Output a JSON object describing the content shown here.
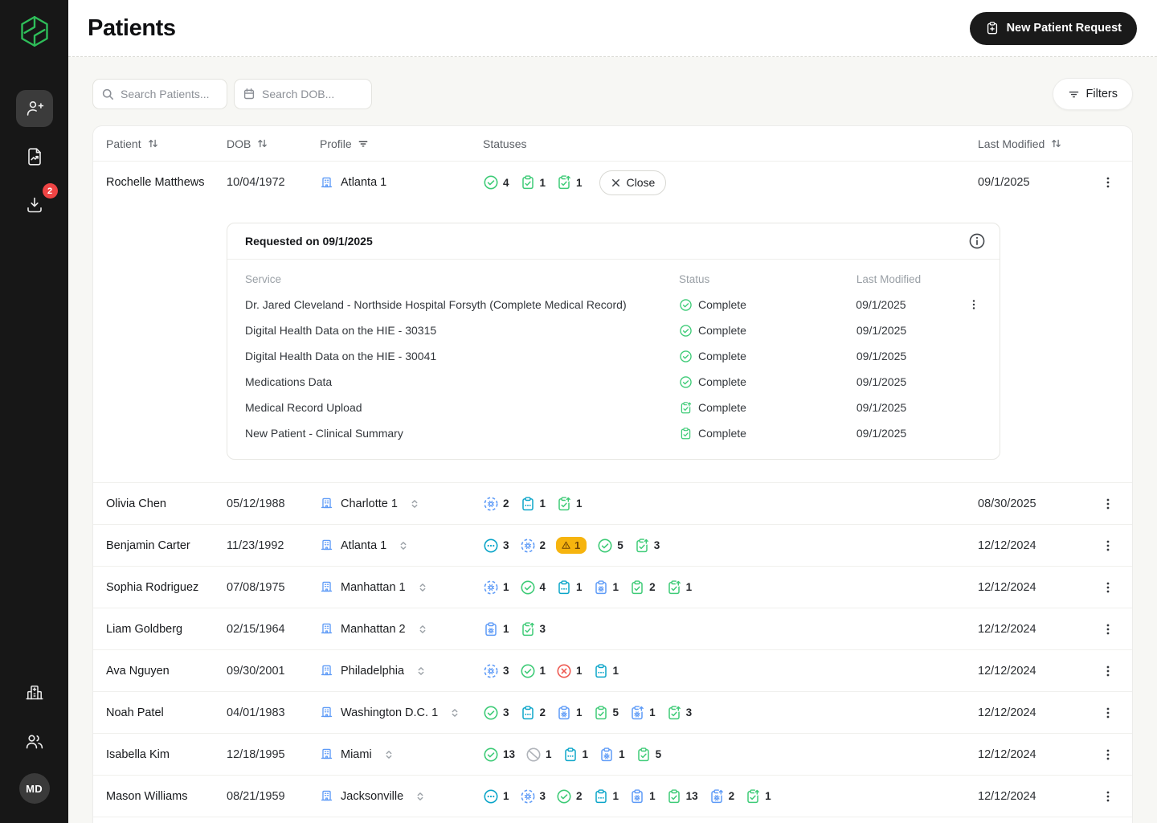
{
  "sidebar": {
    "logo": "brand-logo",
    "nav": [
      {
        "icon": "person-add",
        "active": true
      },
      {
        "icon": "file-chart",
        "active": false
      },
      {
        "icon": "download-tray",
        "active": false,
        "badge": "2"
      }
    ],
    "bottom": [
      {
        "icon": "hospital"
      },
      {
        "icon": "users"
      }
    ],
    "avatar_initials": "MD"
  },
  "header": {
    "title": "Patients",
    "new_patient_button": "New Patient Request"
  },
  "toolbar": {
    "search_patients_placeholder": "Search Patients...",
    "search_dob_placeholder": "Search DOB...",
    "filters_label": "Filters"
  },
  "table": {
    "columns": {
      "patient": "Patient",
      "dob": "DOB",
      "profile": "Profile",
      "statuses": "Statuses",
      "last_modified": "Last Modified"
    },
    "rows": [
      {
        "name": "Rochelle Matthews",
        "dob": "10/04/1972",
        "profile": "Atlanta 1",
        "selector": false,
        "expanded": true,
        "close_button": "Close",
        "last_modified": "09/1/2025",
        "statuses": [
          {
            "icon": "circle-check",
            "count": "4"
          },
          {
            "icon": "clipboard-check",
            "count": "1"
          },
          {
            "icon": "clipboard-up",
            "count": "1"
          }
        ]
      },
      {
        "name": "Olivia Chen",
        "dob": "05/12/1988",
        "profile": "Charlotte 1",
        "selector": true,
        "last_modified": "08/30/2025",
        "statuses": [
          {
            "icon": "gear-circle",
            "count": "2"
          },
          {
            "icon": "clipboard-dots",
            "count": "1"
          },
          {
            "icon": "clipboard-up",
            "count": "1"
          }
        ]
      },
      {
        "name": "Benjamin Carter",
        "dob": "11/23/1992",
        "profile": "Atlanta 1",
        "selector": true,
        "last_modified": "12/12/2024",
        "statuses": [
          {
            "icon": "circle-dots",
            "count": "3"
          },
          {
            "icon": "gear-circle",
            "count": "2"
          },
          {
            "icon": "warning",
            "count": "1"
          },
          {
            "icon": "circle-check",
            "count": "5"
          },
          {
            "icon": "clipboard-up",
            "count": "3"
          }
        ]
      },
      {
        "name": "Sophia Rodriguez",
        "dob": "07/08/1975",
        "profile": "Manhattan 1",
        "selector": true,
        "last_modified": "12/12/2024",
        "statuses": [
          {
            "icon": "gear-circle",
            "count": "1"
          },
          {
            "icon": "circle-check",
            "count": "4"
          },
          {
            "icon": "clipboard-dots",
            "count": "1"
          },
          {
            "icon": "clipboard-gear",
            "count": "1"
          },
          {
            "icon": "clipboard-check",
            "count": "2"
          },
          {
            "icon": "clipboard-up",
            "count": "1"
          }
        ]
      },
      {
        "name": "Liam Goldberg",
        "dob": "02/15/1964",
        "profile": "Manhattan 2",
        "selector": true,
        "last_modified": "12/12/2024",
        "statuses": [
          {
            "icon": "clipboard-gear",
            "count": "1"
          },
          {
            "icon": "clipboard-up",
            "count": "3"
          }
        ]
      },
      {
        "name": "Ava Nguyen",
        "dob": "09/30/2001",
        "profile": "Philadelphia",
        "selector": true,
        "last_modified": "12/12/2024",
        "statuses": [
          {
            "icon": "gear-circle",
            "count": "3"
          },
          {
            "icon": "circle-check",
            "count": "1"
          },
          {
            "icon": "circle-x",
            "count": "1"
          },
          {
            "icon": "clipboard-dots",
            "count": "1"
          }
        ]
      },
      {
        "name": "Noah Patel",
        "dob": "04/01/1983",
        "profile": "Washington D.C. 1",
        "selector": true,
        "last_modified": "12/12/2024",
        "statuses": [
          {
            "icon": "circle-check",
            "count": "3"
          },
          {
            "icon": "clipboard-dots",
            "count": "2"
          },
          {
            "icon": "clipboard-gear",
            "count": "1"
          },
          {
            "icon": "clipboard-check",
            "count": "5"
          },
          {
            "icon": "clipboard-gear-up",
            "count": "1"
          },
          {
            "icon": "clipboard-up",
            "count": "3"
          }
        ]
      },
      {
        "name": "Isabella Kim",
        "dob": "12/18/1995",
        "profile": "Miami",
        "selector": true,
        "last_modified": "12/12/2024",
        "statuses": [
          {
            "icon": "circle-check",
            "count": "13"
          },
          {
            "icon": "slash-circle",
            "count": "1"
          },
          {
            "icon": "clipboard-dots",
            "count": "1"
          },
          {
            "icon": "clipboard-gear",
            "count": "1"
          },
          {
            "icon": "clipboard-check",
            "count": "5"
          }
        ]
      },
      {
        "name": "Mason Williams",
        "dob": "08/21/1959",
        "profile": "Jacksonville",
        "selector": true,
        "last_modified": "12/12/2024",
        "statuses": [
          {
            "icon": "circle-dots",
            "count": "1"
          },
          {
            "icon": "gear-circle",
            "count": "3"
          },
          {
            "icon": "circle-check",
            "count": "2"
          },
          {
            "icon": "clipboard-dots",
            "count": "1"
          },
          {
            "icon": "clipboard-gear",
            "count": "1"
          },
          {
            "icon": "clipboard-check",
            "count": "13"
          },
          {
            "icon": "clipboard-gear-up",
            "count": "2"
          },
          {
            "icon": "clipboard-up",
            "count": "1"
          }
        ]
      }
    ],
    "partial_row_icons": [
      "clipboard-gear",
      "clipboard-check",
      "clipboard-dots",
      "clipboard-up"
    ]
  },
  "expanded_panel": {
    "title": "Requested on 09/1/2025",
    "columns": {
      "service": "Service",
      "status": "Status",
      "last_modified": "Last Modified"
    },
    "services": [
      {
        "service": "Dr. Jared Cleveland - Northside Hospital Forsyth (Complete Medical Record)",
        "icon": "circle-check",
        "status": "Complete",
        "last_modified": "09/1/2025",
        "menu": true
      },
      {
        "service": "Digital Health Data on the HIE - 30315",
        "icon": "circle-check",
        "status": "Complete",
        "last_modified": "09/1/2025",
        "menu": false
      },
      {
        "service": "Digital Health Data on the HIE - 30041",
        "icon": "circle-check",
        "status": "Complete",
        "last_modified": "09/1/2025",
        "menu": false
      },
      {
        "service": "Medications Data",
        "icon": "circle-check",
        "status": "Complete",
        "last_modified": "09/1/2025",
        "menu": false
      },
      {
        "service": "Medical Record Upload",
        "icon": "clipboard-up",
        "status": "Complete",
        "last_modified": "09/1/2025",
        "menu": false
      },
      {
        "service": "New Patient - Clinical Summary",
        "icon": "clipboard-check",
        "status": "Complete",
        "last_modified": "09/1/2025",
        "menu": false
      }
    ]
  },
  "colors": {
    "green": "#3ecb77",
    "cyan": "#0ba5c9",
    "blue": "#5e9bf7",
    "red": "#ee5a52",
    "amber": "#f6b40e",
    "amber_dark": "#6f4405",
    "gray": "#b0b4ba",
    "brand_green": "#2ebd59",
    "badge_red": "#ef4444"
  }
}
